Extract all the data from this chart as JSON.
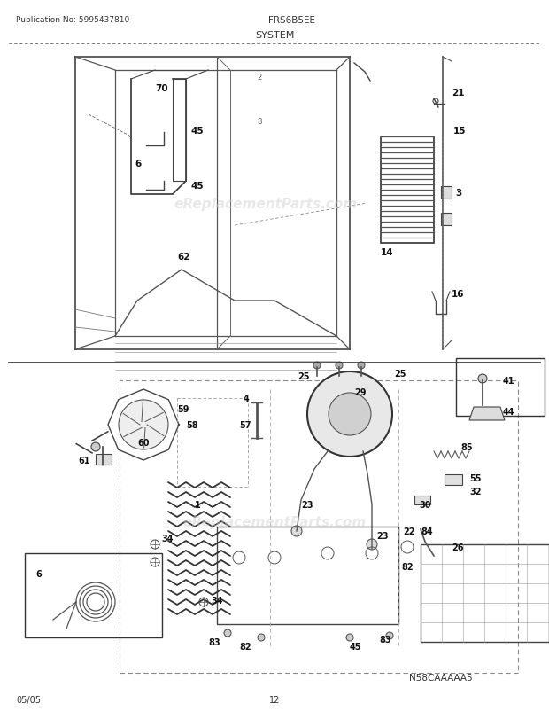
{
  "bg_color": "#ffffff",
  "pub_text": "Publication No: 5995437810",
  "model_text": "FRS6B5EE",
  "section_text": "SYSTEM",
  "date_text": "05/05",
  "page_text": "12",
  "watermark_text": "eReplacementParts.com",
  "diagram_id": "N58CAAAAA5",
  "figsize": [
    6.2,
    8.03
  ],
  "dpi": 100
}
